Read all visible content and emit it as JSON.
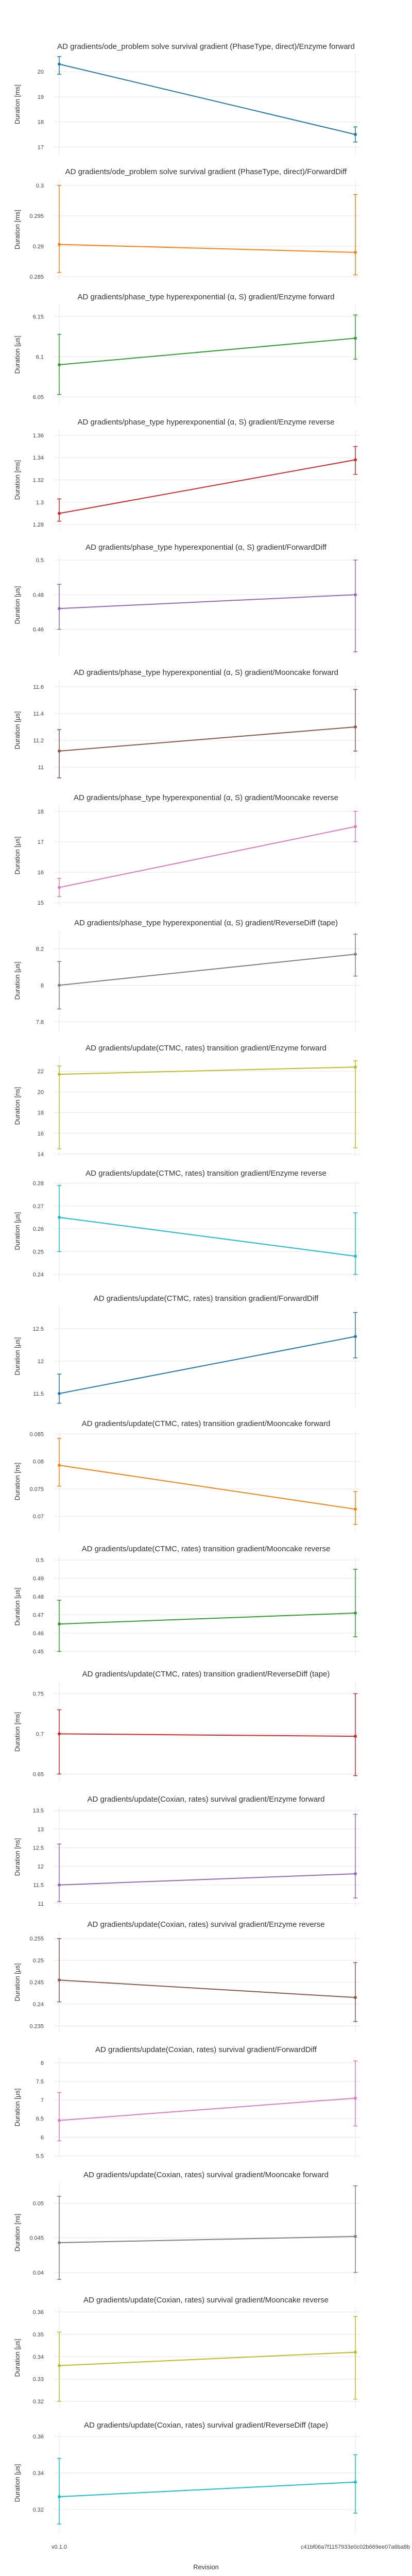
{
  "chart_data": {
    "type": "line",
    "xlabel": "Revision",
    "x_categories": [
      "v0.1.0",
      "c41bf06a7f1157933e0c02b669ee07a6ba8b"
    ],
    "panels": [
      {
        "title": "AD gradients/ode_problem solve survival gradient (PhaseType, direct)/Enzyme forward",
        "ylabel": "Duration [ms]",
        "color": "#1f77b4",
        "yticks": [
          17,
          18,
          19,
          20
        ],
        "ylim": [
          16.7,
          20.7
        ],
        "values": [
          20.3,
          17.5
        ],
        "err_low": [
          19.9,
          17.2
        ],
        "err_high": [
          20.6,
          17.8
        ]
      },
      {
        "title": "AD gradients/ode_problem solve survival gradient (PhaseType, direct)/ForwardDiff",
        "ylabel": "Duration [ms]",
        "color": "#ff7f0e",
        "yticks": [
          0.285,
          0.29,
          0.295,
          0.3
        ],
        "ylim": [
          0.2845,
          0.301
        ],
        "values": [
          0.2903,
          0.289
        ],
        "err_low": [
          0.2857,
          0.2853
        ],
        "err_high": [
          0.3,
          0.2985
        ]
      },
      {
        "title": "AD gradients/phase_type hyperexponential (α, S) gradient/Enzyme forward",
        "ylabel": "Duration [μs]",
        "color": "#2ca02c",
        "yticks": [
          6.05,
          6.1,
          6.15
        ],
        "ylim": [
          6.04,
          6.165
        ],
        "values": [
          6.09,
          6.123
        ],
        "err_low": [
          6.053,
          6.097
        ],
        "err_high": [
          6.128,
          6.152
        ]
      },
      {
        "title": "AD gradients/phase_type hyperexponential (α, S) gradient/Enzyme reverse",
        "ylabel": "Duration [ms]",
        "color": "#d62728",
        "yticks": [
          1.28,
          1.3,
          1.32,
          1.34,
          1.36
        ],
        "ylim": [
          1.275,
          1.365
        ],
        "values": [
          1.29,
          1.338
        ],
        "err_low": [
          1.283,
          1.325
        ],
        "err_high": [
          1.303,
          1.35
        ]
      },
      {
        "title": "AD gradients/phase_type hyperexponential (α, S) gradient/ForwardDiff",
        "ylabel": "Duration [μs]",
        "color": "#9467bd",
        "yticks": [
          0.46,
          0.48,
          0.5
        ],
        "ylim": [
          0.445,
          0.503
        ],
        "values": [
          0.472,
          0.48
        ],
        "err_low": [
          0.46,
          0.447
        ],
        "err_high": [
          0.486,
          0.5
        ]
      },
      {
        "title": "AD gradients/phase_type hyperexponential (α, S) gradient/Mooncake forward",
        "ylabel": "Duration [μs]",
        "color": "#8c564b",
        "yticks": [
          11,
          11.2,
          11.4,
          11.6
        ],
        "ylim": [
          10.9,
          11.65
        ],
        "values": [
          11.12,
          11.3
        ],
        "err_low": [
          10.92,
          11.12
        ],
        "err_high": [
          11.28,
          11.58
        ]
      },
      {
        "title": "AD gradients/phase_type hyperexponential (α, S) gradient/Mooncake reverse",
        "ylabel": "Duration [μs]",
        "color": "#e377c2",
        "yticks": [
          15,
          16,
          17,
          18
        ],
        "ylim": [
          14.9,
          18.2
        ],
        "values": [
          15.5,
          17.5
        ],
        "err_low": [
          15.2,
          17.0
        ],
        "err_high": [
          15.8,
          18.0
        ]
      },
      {
        "title": "AD gradients/phase_type hyperexponential (α, S) gradient/ReverseDiff (tape)",
        "ylabel": "Duration [μs]",
        "color": "#7f7f7f",
        "yticks": [
          7.8,
          8,
          8.2
        ],
        "ylim": [
          7.75,
          8.3
        ],
        "values": [
          8.0,
          8.17
        ],
        "err_low": [
          7.87,
          8.05
        ],
        "err_high": [
          8.13,
          8.28
        ]
      },
      {
        "title": "AD gradients/update(CTMC, rates) transition gradient/Enzyme forward",
        "ylabel": "Duration [ns]",
        "color": "#bcbd22",
        "yticks": [
          14,
          16,
          18,
          20,
          22
        ],
        "ylim": [
          13.8,
          23.5
        ],
        "values": [
          21.7,
          22.4
        ],
        "err_low": [
          14.5,
          14.6
        ],
        "err_high": [
          22.5,
          23.0
        ]
      },
      {
        "title": "AD gradients/update(CTMC, rates) transition gradient/Enzyme reverse",
        "ylabel": "Duration [μs]",
        "color": "#17becf",
        "yticks": [
          0.24,
          0.25,
          0.26,
          0.27,
          0.28
        ],
        "ylim": [
          0.237,
          0.281
        ],
        "values": [
          0.265,
          0.248
        ],
        "err_low": [
          0.25,
          0.24
        ],
        "err_high": [
          0.279,
          0.267
        ]
      },
      {
        "title": "AD gradients/update(CTMC, rates) transition gradient/ForwardDiff",
        "ylabel": "Duration [μs]",
        "color": "#1f77b4",
        "yticks": [
          11.5,
          12,
          12.5
        ],
        "ylim": [
          11.3,
          12.85
        ],
        "values": [
          11.5,
          12.38
        ],
        "err_low": [
          11.35,
          12.05
        ],
        "err_high": [
          11.8,
          12.75
        ]
      },
      {
        "title": "AD gradients/update(CTMC, rates) transition gradient/Mooncake forward",
        "ylabel": "Duration [ns]",
        "color": "#ff7f0e",
        "yticks": [
          0.07,
          0.075,
          0.08,
          0.085
        ],
        "ylim": [
          0.0672,
          0.0855
        ],
        "values": [
          0.0793,
          0.0713
        ],
        "err_low": [
          0.0755,
          0.0685
        ],
        "err_high": [
          0.0842,
          0.0745
        ]
      },
      {
        "title": "AD gradients/update(CTMC, rates) transition gradient/Mooncake reverse",
        "ylabel": "Duration [μs]",
        "color": "#2ca02c",
        "yticks": [
          0.45,
          0.46,
          0.47,
          0.48,
          0.49,
          0.5
        ],
        "ylim": [
          0.447,
          0.502
        ],
        "values": [
          0.465,
          0.471
        ],
        "err_low": [
          0.45,
          0.458
        ],
        "err_high": [
          0.478,
          0.495
        ]
      },
      {
        "title": "AD gradients/update(CTMC, rates) transition gradient/ReverseDiff (tape)",
        "ylabel": "Duration [ms]",
        "color": "#d62728",
        "yticks": [
          0.65,
          0.7,
          0.75
        ],
        "ylim": [
          0.64,
          0.765
        ],
        "values": [
          0.7,
          0.697
        ],
        "err_low": [
          0.65,
          0.648
        ],
        "err_high": [
          0.73,
          0.75
        ]
      },
      {
        "title": "AD gradients/update(Coxian, rates) survival gradient/Enzyme forward",
        "ylabel": "Duration [ns]",
        "color": "#9467bd",
        "yticks": [
          11,
          11.5,
          12,
          12.5,
          13,
          13.5
        ],
        "ylim": [
          10.9,
          13.6
        ],
        "values": [
          11.5,
          11.8
        ],
        "err_low": [
          11.05,
          11.15
        ],
        "err_high": [
          12.6,
          13.4
        ]
      },
      {
        "title": "AD gradients/update(Coxian, rates) survival gradient/Enzyme reverse",
        "ylabel": "Duration [μs]",
        "color": "#8c564b",
        "yticks": [
          0.235,
          0.24,
          0.245,
          0.25,
          0.255
        ],
        "ylim": [
          0.2335,
          0.2565
        ],
        "values": [
          0.2455,
          0.2415
        ],
        "err_low": [
          0.2405,
          0.236
        ],
        "err_high": [
          0.255,
          0.2495
        ]
      },
      {
        "title": "AD gradients/update(Coxian, rates) survival gradient/ForwardDiff",
        "ylabel": "Duration [μs]",
        "color": "#e377c2",
        "yticks": [
          5.5,
          6,
          6.5,
          7,
          7.5,
          8
        ],
        "ylim": [
          5.45,
          8.15
        ],
        "values": [
          6.45,
          7.05
        ],
        "err_low": [
          5.9,
          6.3
        ],
        "err_high": [
          7.2,
          8.05
        ]
      },
      {
        "title": "AD gradients/update(Coxian, rates) survival gradient/Mooncake forward",
        "ylabel": "Duration [ns]",
        "color": "#7f7f7f",
        "yticks": [
          0.04,
          0.045,
          0.05
        ],
        "ylim": [
          0.0385,
          0.053
        ],
        "values": [
          0.0443,
          0.0452
        ],
        "err_low": [
          0.039,
          0.04
        ],
        "err_high": [
          0.051,
          0.0525
        ]
      },
      {
        "title": "AD gradients/update(Coxian, rates) survival gradient/Mooncake reverse",
        "ylabel": "Duration [μs]",
        "color": "#bcbd22",
        "yticks": [
          0.32,
          0.33,
          0.34,
          0.35,
          0.36
        ],
        "ylim": [
          0.317,
          0.362
        ],
        "values": [
          0.336,
          0.342
        ],
        "err_low": [
          0.32,
          0.321
        ],
        "err_high": [
          0.351,
          0.358
        ]
      },
      {
        "title": "AD gradients/update(Coxian, rates) survival gradient/ReverseDiff (tape)",
        "ylabel": "Duration [μs]",
        "color": "#17becf",
        "yticks": [
          0.32,
          0.34,
          0.36
        ],
        "ylim": [
          0.307,
          0.362
        ],
        "values": [
          0.327,
          0.335
        ],
        "err_low": [
          0.312,
          0.318
        ],
        "err_high": [
          0.348,
          0.35
        ]
      }
    ]
  }
}
